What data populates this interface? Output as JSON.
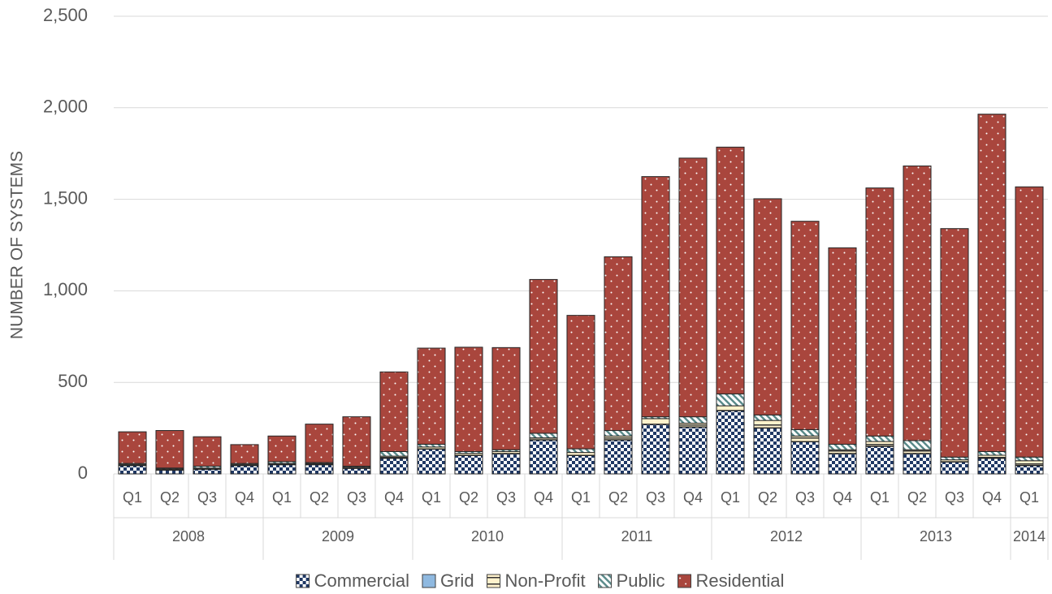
{
  "chart_data": {
    "type": "stacked_bar",
    "y_label": "NUMBER OF SYSTEMS",
    "category_groups": [
      {
        "name": "2008",
        "categories": [
          "Q1",
          "Q2",
          "Q3",
          "Q4"
        ]
      },
      {
        "name": "2009",
        "categories": [
          "Q1",
          "Q2",
          "Q3",
          "Q4"
        ]
      },
      {
        "name": "2010",
        "categories": [
          "Q1",
          "Q2",
          "Q3",
          "Q4"
        ]
      },
      {
        "name": "2011",
        "categories": [
          "Q1",
          "Q2",
          "Q3",
          "Q4"
        ]
      },
      {
        "name": "2012",
        "categories": [
          "Q1",
          "Q2",
          "Q3",
          "Q4"
        ]
      },
      {
        "name": "2013",
        "categories": [
          "Q1",
          "Q2",
          "Q3",
          "Q4"
        ]
      },
      {
        "name": "2014",
        "categories": [
          "Q1"
        ]
      }
    ],
    "series": [
      {
        "name": "Commercial",
        "color": "#1f3864",
        "pattern": "checker",
        "values": [
          45,
          20,
          25,
          45,
          50,
          50,
          30,
          85,
          135,
          100,
          110,
          185,
          100,
          185,
          270,
          255,
          345,
          250,
          175,
          110,
          150,
          110,
          65,
          85,
          45
        ]
      },
      {
        "name": "Grid",
        "color": "#8fb9e0",
        "pattern": "solid",
        "values": [
          2,
          2,
          2,
          2,
          2,
          2,
          2,
          2,
          2,
          2,
          2,
          2,
          2,
          2,
          2,
          2,
          2,
          2,
          2,
          2,
          2,
          2,
          2,
          2,
          2
        ]
      },
      {
        "name": "Non-Profit",
        "color": "#fff2cc",
        "pattern": "hlines",
        "values": [
          5,
          5,
          5,
          5,
          5,
          5,
          5,
          10,
          10,
          10,
          10,
          10,
          15,
          20,
          30,
          20,
          25,
          40,
          30,
          20,
          25,
          20,
          10,
          15,
          25
        ]
      },
      {
        "name": "Public",
        "color": "#5a8a8a",
        "pattern": "diagonal",
        "values": [
          5,
          5,
          10,
          5,
          10,
          5,
          5,
          25,
          15,
          10,
          10,
          25,
          20,
          30,
          10,
          35,
          65,
          30,
          35,
          30,
          30,
          50,
          15,
          20,
          20
        ]
      },
      {
        "name": "Residential",
        "color": "#a9463d",
        "pattern": "dots",
        "values": [
          173,
          205,
          161,
          103,
          140,
          210,
          270,
          435,
          525,
          570,
          558,
          840,
          729,
          949,
          1312,
          1413,
          1348,
          1181,
          1138,
          1073,
          1355,
          1500,
          1248,
          1843,
          1476
        ]
      }
    ],
    "ylim": [
      0,
      2500
    ],
    "yticks": [
      0,
      500,
      {
        "value": 1000,
        "label": "1,000"
      },
      {
        "value": 1500,
        "label": "1,500"
      },
      {
        "value": 2000,
        "label": "2,000"
      },
      {
        "value": 2500,
        "label": "2,500"
      }
    ],
    "grid": true,
    "legend": "bottom"
  }
}
